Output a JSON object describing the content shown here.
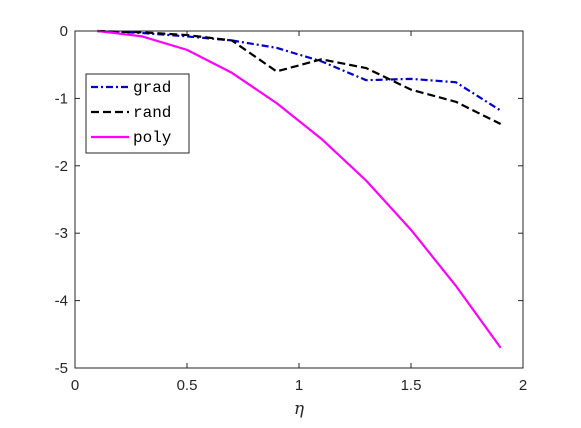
{
  "chart_data": {
    "type": "line",
    "xlabel": "η",
    "ylabel": "",
    "xlim": [
      0,
      2
    ],
    "ylim": [
      -5,
      0
    ],
    "x_ticks": [
      0,
      0.5,
      1,
      1.5,
      2
    ],
    "x_tick_labels": [
      "0",
      "0.5",
      "1",
      "1.5",
      "2"
    ],
    "y_ticks": [
      0,
      -1,
      -2,
      -3,
      -4,
      -5
    ],
    "y_tick_labels": [
      "0",
      "-1",
      "-2",
      "-3",
      "-4",
      "-5"
    ],
    "grid": false,
    "legend_position": "upper-left",
    "x": [
      0.1,
      0.3,
      0.5,
      0.7,
      0.9,
      1.1,
      1.3,
      1.5,
      1.7,
      1.9
    ],
    "series": [
      {
        "name": "grad",
        "color": "#0000cc",
        "style": "dash-dot",
        "values": [
          0,
          -0.03,
          -0.08,
          -0.14,
          -0.25,
          -0.45,
          -0.73,
          -0.71,
          -0.76,
          -1.18
        ]
      },
      {
        "name": "rand",
        "color": "#000000",
        "style": "dashed",
        "values": [
          0,
          -0.02,
          -0.06,
          -0.14,
          -0.6,
          -0.42,
          -0.55,
          -0.87,
          -1.05,
          -1.38
        ]
      },
      {
        "name": "poly",
        "color": "#ff00ff",
        "style": "solid",
        "values": [
          0,
          -0.08,
          -0.28,
          -0.62,
          -1.07,
          -1.6,
          -2.22,
          -2.95,
          -3.78,
          -4.7
        ]
      }
    ]
  }
}
